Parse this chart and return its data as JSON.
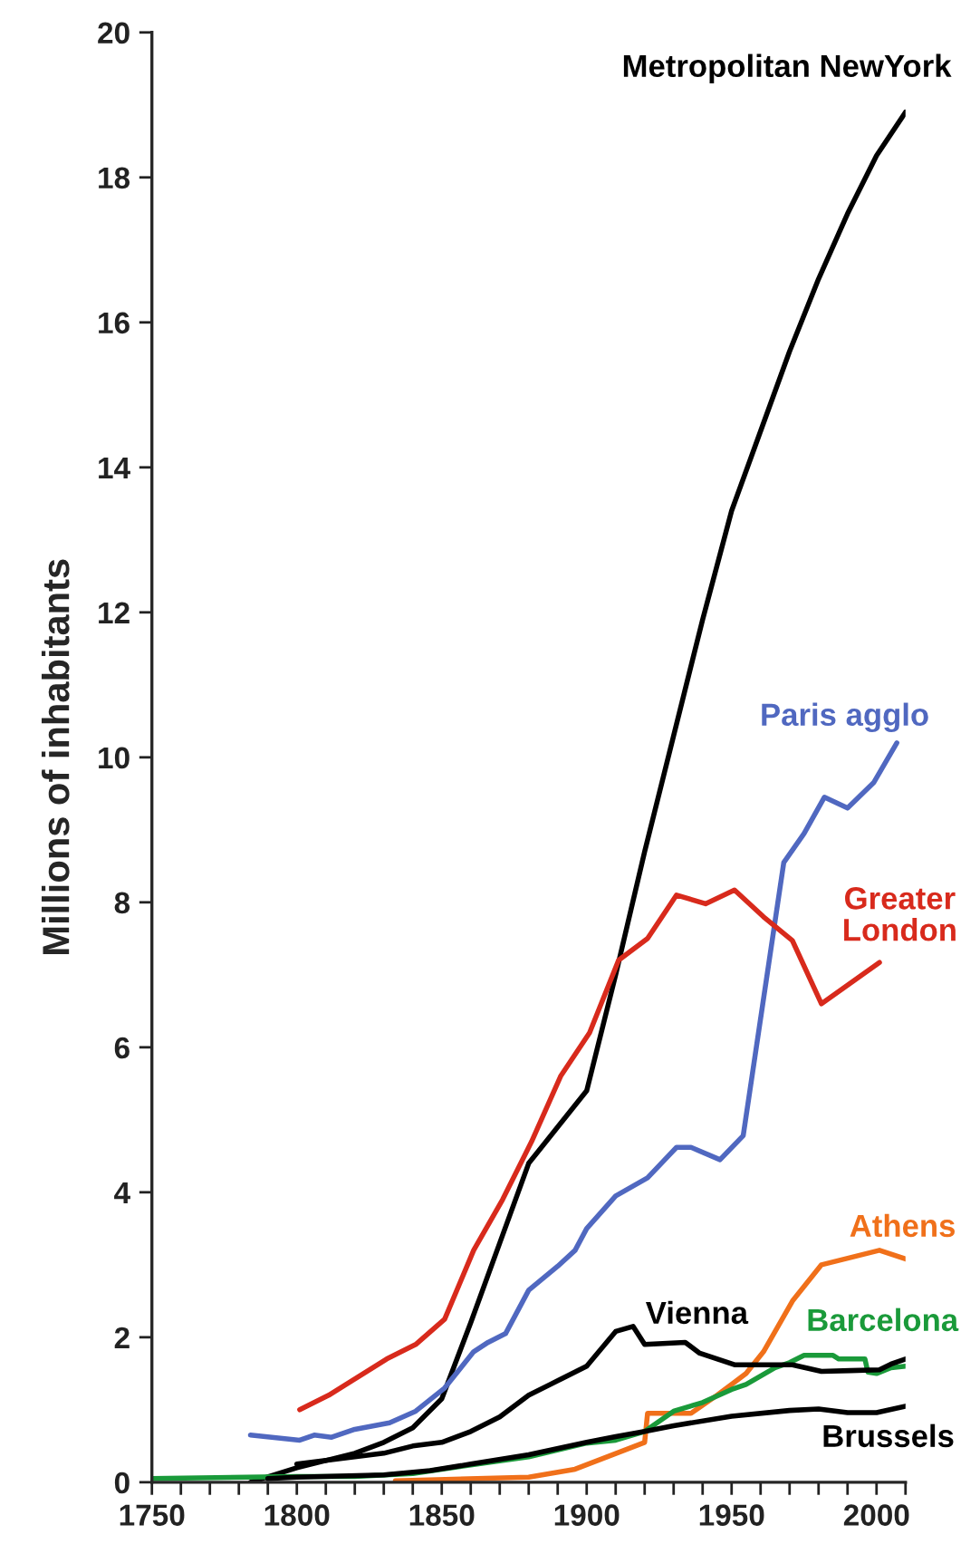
{
  "chart_data": {
    "type": "line",
    "ylabel": "Millions of inhabitants",
    "xlim": [
      1750,
      2010
    ],
    "ylim": [
      0,
      20
    ],
    "xticks": [
      1750,
      {
        "value": 1760,
        "label": null
      },
      {
        "value": 1770,
        "label": null
      },
      {
        "value": 1780,
        "label": null
      },
      {
        "value": 1790,
        "label": null
      },
      1800,
      {
        "value": 1810,
        "label": null
      },
      {
        "value": 1820,
        "label": null
      },
      {
        "value": 1830,
        "label": null
      },
      {
        "value": 1840,
        "label": null
      },
      1850,
      {
        "value": 1860,
        "label": null
      },
      {
        "value": 1870,
        "label": null
      },
      {
        "value": 1880,
        "label": null
      },
      {
        "value": 1890,
        "label": null
      },
      1900,
      {
        "value": 1910,
        "label": null
      },
      {
        "value": 1920,
        "label": null
      },
      {
        "value": 1930,
        "label": null
      },
      {
        "value": 1940,
        "label": null
      },
      1950,
      {
        "value": 1960,
        "label": null
      },
      {
        "value": 1970,
        "label": null
      },
      {
        "value": 1980,
        "label": null
      },
      {
        "value": 1990,
        "label": null
      },
      2000,
      {
        "value": 2010,
        "label": null
      }
    ],
    "yticks": [
      0,
      2,
      4,
      6,
      8,
      10,
      12,
      14,
      16,
      18,
      20
    ],
    "grid": false,
    "legend": false,
    "marker": "none",
    "line_style": "solid",
    "series": [
      {
        "name": "Metropolitan NewYork",
        "color": "#000000",
        "x": [
          1784,
          1800,
          1820,
          1830,
          1840,
          1850,
          1860,
          1870,
          1880,
          1890,
          1900,
          1910,
          1920,
          1930,
          1940,
          1950,
          1960,
          1970,
          1980,
          1990,
          2000,
          2010
        ],
        "values": [
          0,
          0.2,
          0.4,
          0.55,
          0.75,
          1.15,
          2.2,
          3.3,
          4.4,
          4.9,
          5.4,
          7.0,
          8.7,
          10.3,
          11.9,
          13.4,
          14.5,
          15.6,
          16.6,
          17.5,
          18.3,
          18.9
        ]
      },
      {
        "name": "Paris agglo",
        "color": "#5068c0",
        "x": [
          1784,
          1801,
          1806,
          1812,
          1820,
          1832,
          1841,
          1851,
          1861,
          1866,
          1872,
          1880,
          1890,
          1896,
          1900,
          1910,
          1921,
          1931,
          1936,
          1946,
          1954,
          1968,
          1975,
          1982,
          1990,
          1999,
          2007
        ],
        "values": [
          0.65,
          0.58,
          0.65,
          0.62,
          0.73,
          0.82,
          0.98,
          1.3,
          1.8,
          1.93,
          2.05,
          2.65,
          2.98,
          3.2,
          3.5,
          3.95,
          4.2,
          4.62,
          4.62,
          4.45,
          4.78,
          8.55,
          8.95,
          9.45,
          9.3,
          9.65,
          10.2
        ]
      },
      {
        "name": "Greater London",
        "color": "#d82a1c",
        "x": [
          1801,
          1811,
          1821,
          1831,
          1841,
          1851,
          1861,
          1871,
          1881,
          1891,
          1901,
          1911,
          1921,
          1931,
          1941,
          1951,
          1961,
          1971,
          1981,
          2001
        ],
        "values": [
          1.0,
          1.2,
          1.45,
          1.7,
          1.9,
          2.25,
          3.2,
          3.9,
          4.7,
          5.6,
          6.2,
          7.2,
          7.5,
          8.1,
          7.98,
          8.17,
          7.8,
          7.47,
          6.6,
          7.17
        ]
      },
      {
        "name": "Athens",
        "color": "#f0701a",
        "x": [
          1834,
          1880,
          1896,
          1907,
          1920,
          1921,
          1936,
          1945,
          1955,
          1961,
          1971,
          1981,
          2001,
          2010
        ],
        "values": [
          0.02,
          0.07,
          0.18,
          0.35,
          0.55,
          0.95,
          0.95,
          1.2,
          1.5,
          1.8,
          2.5,
          3.0,
          3.2,
          3.08
        ]
      },
      {
        "name": "Barcelona",
        "color": "#1a9a3a",
        "x": [
          1750,
          1800,
          1820,
          1840,
          1860,
          1880,
          1900,
          1910,
          1920,
          1930,
          1940,
          1950,
          1955,
          1965,
          1970,
          1975,
          1985,
          1987,
          1996,
          1997,
          2000,
          2005,
          2010
        ],
        "values": [
          0.05,
          0.08,
          0.08,
          0.12,
          0.24,
          0.35,
          0.54,
          0.58,
          0.7,
          0.98,
          1.1,
          1.28,
          1.35,
          1.58,
          1.65,
          1.75,
          1.75,
          1.7,
          1.7,
          1.52,
          1.5,
          1.58,
          1.6
        ]
      },
      {
        "name": "Vienna",
        "color": "#000000",
        "x": [
          1800,
          1810,
          1830,
          1840,
          1850,
          1860,
          1870,
          1880,
          1890,
          1900,
          1910,
          1916,
          1920,
          1934,
          1939,
          1951,
          1961,
          1971,
          1981,
          1991,
          2001,
          2005,
          2010
        ],
        "values": [
          0.25,
          0.3,
          0.4,
          0.5,
          0.55,
          0.7,
          0.9,
          1.2,
          1.4,
          1.6,
          2.08,
          2.15,
          1.9,
          1.93,
          1.78,
          1.62,
          1.62,
          1.62,
          1.53,
          1.54,
          1.55,
          1.63,
          1.7
        ]
      },
      {
        "name": "Brussels",
        "color": "#000000",
        "x": [
          1790,
          1800,
          1830,
          1846,
          1860,
          1880,
          1900,
          1910,
          1920,
          1930,
          1950,
          1970,
          1980,
          1990,
          2000,
          2010
        ],
        "values": [
          0.05,
          0.07,
          0.1,
          0.16,
          0.25,
          0.38,
          0.55,
          0.63,
          0.7,
          0.78,
          0.91,
          0.99,
          1.01,
          0.96,
          0.96,
          1.05
        ]
      }
    ]
  }
}
